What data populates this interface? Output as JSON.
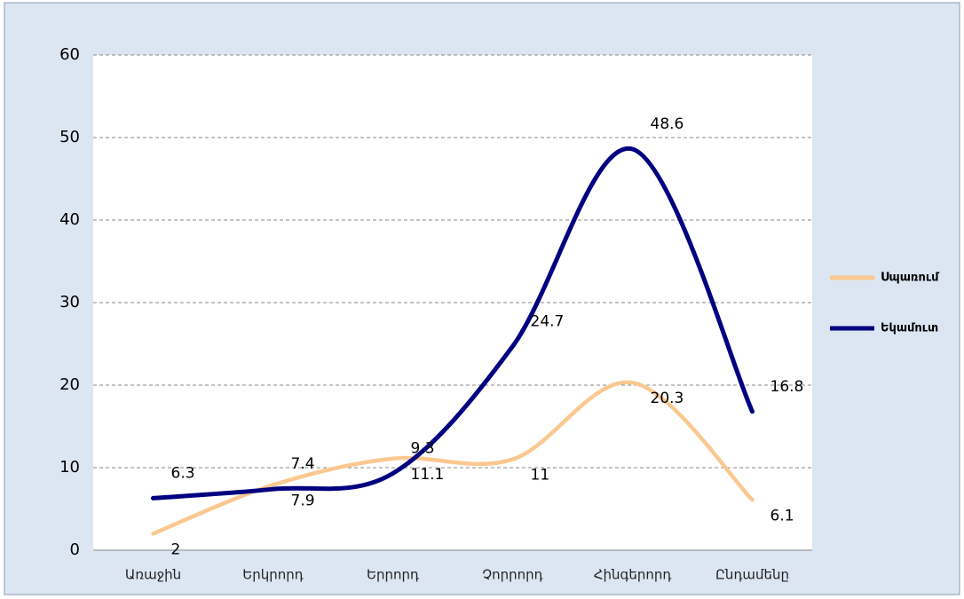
{
  "chart_data": {
    "type": "line",
    "categories": [
      "Առաջին",
      "Երկրորդ",
      "Երրորդ",
      "Չորրորդ",
      "Հինգերորդ",
      "Ընդամենը"
    ],
    "series": [
      {
        "name": "Սպառում",
        "color": "#fac890",
        "values": [
          2,
          7.9,
          11.1,
          11,
          20.3,
          6.1
        ]
      },
      {
        "name": "Եկամուտ",
        "color": "#000080",
        "values": [
          6.3,
          7.4,
          9.3,
          24.7,
          48.6,
          16.8
        ]
      }
    ],
    "ylim": [
      0,
      60
    ],
    "yticks": [
      0,
      10,
      20,
      30,
      40,
      50,
      60
    ],
    "grid": true,
    "smooth": true,
    "legend": "right"
  }
}
